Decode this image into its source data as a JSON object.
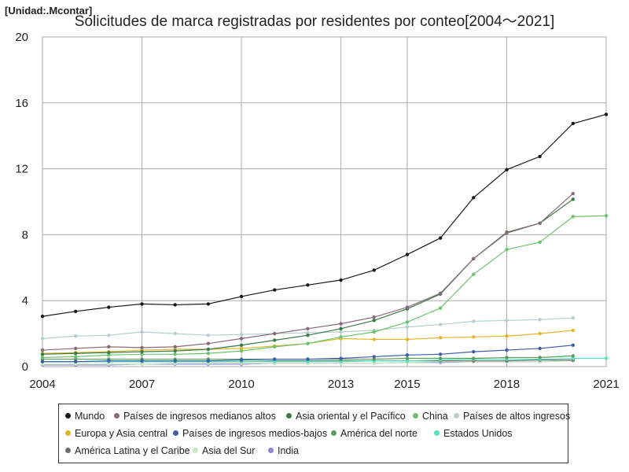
{
  "unit_label": "[Unidad:.Mcontar]",
  "chart_data": {
    "type": "line",
    "title": "Solicitudes de marca registradas por residentes por conteo[2004～2021]",
    "xlabel": "",
    "ylabel": "",
    "xlim": [
      2004,
      2021
    ],
    "ylim": [
      0,
      20
    ],
    "x_ticks": [
      "2004",
      "2007",
      "2010",
      "2013",
      "2015",
      "2018",
      "2021"
    ],
    "y_ticks": [
      "0",
      "4",
      "8",
      "12",
      "16",
      "20"
    ],
    "grid": true,
    "legend_position": "bottom",
    "x": [
      2004,
      2005,
      2006,
      2007,
      2008,
      2009,
      2010,
      2011,
      2012,
      2013,
      2014,
      2015,
      2016,
      2017,
      2018,
      2019,
      2020,
      2021
    ],
    "series": [
      {
        "name": "Mundo",
        "color": "#1a1a1a",
        "values": [
          3.05,
          3.35,
          3.6,
          3.8,
          3.75,
          3.8,
          4.25,
          4.65,
          4.95,
          5.25,
          5.85,
          6.8,
          7.8,
          10.25,
          11.95,
          12.75,
          14.75,
          15.3
        ]
      },
      {
        "name": "Países de ingresos medianos altos",
        "color": "#8a6a78",
        "values": [
          1.0,
          1.1,
          1.2,
          1.15,
          1.2,
          1.4,
          1.7,
          2.0,
          2.3,
          2.6,
          3.0,
          3.6,
          4.45,
          6.55,
          8.1,
          8.7,
          10.5,
          null
        ]
      },
      {
        "name": "Asia oriental y el Pacífico",
        "color": "#3b7a4a",
        "values": [
          0.75,
          0.8,
          0.85,
          0.9,
          0.95,
          1.05,
          1.3,
          1.6,
          1.9,
          2.3,
          2.8,
          3.5,
          4.4,
          6.55,
          8.15,
          8.7,
          10.15,
          null
        ]
      },
      {
        "name": "China",
        "color": "#6cc36c",
        "values": [
          0.55,
          0.6,
          0.7,
          0.75,
          0.75,
          0.8,
          0.95,
          1.2,
          1.4,
          1.8,
          2.1,
          2.7,
          3.55,
          5.6,
          7.1,
          7.55,
          9.1,
          9.15
        ]
      },
      {
        "name": "Países de altos ingresos",
        "color": "#b7cfcf",
        "values": [
          1.7,
          1.85,
          1.9,
          2.1,
          2.0,
          1.9,
          1.95,
          2.0,
          2.05,
          2.1,
          2.2,
          2.4,
          2.55,
          2.75,
          2.8,
          2.85,
          2.95,
          null
        ]
      },
      {
        "name": "Europa y Asia central",
        "color": "#e3b52a",
        "values": [
          0.8,
          0.85,
          0.9,
          1.0,
          1.05,
          1.05,
          1.1,
          1.25,
          1.4,
          1.7,
          1.65,
          1.65,
          1.75,
          1.8,
          1.85,
          2.0,
          2.2,
          null
        ]
      },
      {
        "name": "Países de ingresos medios-bajos",
        "color": "#3e5ea8",
        "values": [
          0.3,
          0.3,
          0.35,
          0.35,
          0.35,
          0.35,
          0.4,
          0.45,
          0.45,
          0.5,
          0.6,
          0.7,
          0.75,
          0.9,
          1.0,
          1.1,
          1.3,
          null
        ]
      },
      {
        "name": "América del norte",
        "color": "#5c9c5c",
        "values": [
          0.45,
          0.45,
          0.45,
          0.45,
          0.45,
          0.45,
          0.45,
          0.45,
          0.45,
          0.45,
          0.45,
          0.5,
          0.5,
          0.5,
          0.55,
          0.55,
          0.65,
          null
        ]
      },
      {
        "name": "Estados Unidos",
        "color": "#55e0c0",
        "values": [
          0.3,
          0.3,
          0.3,
          0.3,
          0.3,
          0.3,
          0.3,
          0.3,
          0.3,
          0.3,
          0.35,
          0.35,
          0.4,
          0.45,
          0.45,
          0.45,
          0.5,
          0.5
        ]
      },
      {
        "name": "América Latina y el Caribe",
        "color": "#6e6e6e",
        "values": [
          0.3,
          0.3,
          0.3,
          0.3,
          0.3,
          0.3,
          0.3,
          0.35,
          0.35,
          0.35,
          0.35,
          0.35,
          0.35,
          0.35,
          0.35,
          0.4,
          0.4,
          null
        ]
      },
      {
        "name": "Asia del Sur",
        "color": "#c8e8c0",
        "values": [
          0.15,
          0.15,
          0.15,
          0.15,
          0.2,
          0.2,
          0.2,
          0.2,
          0.2,
          0.2,
          0.2,
          0.25,
          0.3,
          0.3,
          0.3,
          0.3,
          0.35,
          null
        ]
      },
      {
        "name": "India",
        "color": "#8f84d8",
        "values": [
          0.1,
          0.1,
          0.1,
          0.15,
          0.15,
          0.15,
          0.15,
          0.2,
          0.2,
          0.2,
          0.2,
          0.25,
          0.25,
          0.3,
          0.3,
          0.3,
          0.35,
          null
        ]
      }
    ]
  }
}
